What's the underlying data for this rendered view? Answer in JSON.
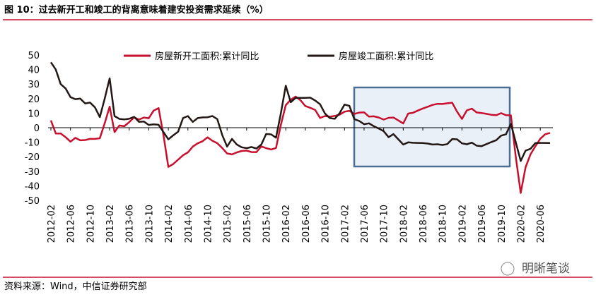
{
  "chart_data": {
    "type": "line",
    "title": "图 10：过去新开工和竣工的背离意味着建安投资需求延续（%）",
    "source": "资料来源：Wind，中信证券研究部",
    "watermark": "明晰笔谈",
    "categories": [
      "2012-02",
      null,
      null,
      null,
      "2012-06",
      null,
      null,
      null,
      "2012-10",
      null,
      null,
      null,
      "2013-02",
      null,
      null,
      null,
      "2013-06",
      null,
      null,
      null,
      "2013-10",
      null,
      null,
      null,
      "2014-02",
      null,
      null,
      null,
      "2014-06",
      null,
      null,
      null,
      "2014-10",
      null,
      null,
      null,
      "2015-02",
      null,
      null,
      null,
      "2015-06",
      null,
      null,
      null,
      "2015-10",
      null,
      null,
      null,
      "2016-02",
      null,
      null,
      null,
      "2016-06",
      null,
      null,
      null,
      "2016-10",
      null,
      null,
      null,
      "2017-02",
      null,
      null,
      null,
      "2017-06",
      null,
      null,
      null,
      "2017-10",
      null,
      null,
      null,
      "2018-02",
      null,
      null,
      null,
      "2018-06",
      null,
      null,
      null,
      "2018-10",
      null,
      null,
      null,
      "2019-02",
      null,
      null,
      null,
      "2019-06",
      null,
      null,
      null,
      "2019-10",
      null,
      null,
      null,
      "2020-02",
      null,
      null,
      null,
      "2020-06",
      null,
      null
    ],
    "series": [
      {
        "name": "房屋新开工面积:累计同比",
        "color": "#c8102e",
        "values": [
          5,
          -4,
          -4,
          -6.5,
          -9.6,
          -7,
          -8.7,
          -8.5,
          -7.7,
          -7.7,
          -7.3,
          3,
          14.5,
          -3,
          1.5,
          1,
          3.8,
          7.1,
          5.6,
          7,
          6.5,
          11.8,
          13.5,
          -5,
          -27,
          -25,
          -22,
          -19,
          -17,
          -13,
          -10.8,
          -9.3,
          -6.6,
          -9,
          -10.7,
          -14,
          -17.7,
          -18.4,
          -17,
          -16,
          -15.8,
          -16.8,
          -16.8,
          -12.9,
          -14.1,
          -15,
          -14,
          2,
          15.5,
          19.2,
          21.4,
          18.9,
          14.9,
          13.7,
          12.2,
          6.7,
          8,
          7.6,
          8.1,
          9,
          11,
          11.6,
          9.4,
          10.4,
          10.6,
          7.6,
          7.8,
          7,
          5.6,
          6.8,
          7,
          5,
          2.9,
          9.7,
          10.3,
          11.8,
          13.2,
          14.4,
          15.7,
          16.4,
          16.3,
          16.8,
          17.2,
          11,
          6,
          11.9,
          13.1,
          10.5,
          10.1,
          9.5,
          8.9,
          8.6,
          10,
          8.6,
          8.5,
          -20,
          -44.9,
          -27.2,
          -18.4,
          -12.8,
          -7.6,
          -4.5,
          -3.6
        ]
      },
      {
        "name": "房屋竣工面积:累计同比",
        "color": "#231815",
        "values": [
          45,
          40,
          30,
          27,
          21,
          19.6,
          20,
          16.7,
          17.3,
          14,
          7.3,
          20,
          34,
          8,
          6,
          5.7,
          6.1,
          7.5,
          4,
          4.2,
          1.9,
          2.3,
          2,
          -3,
          -8,
          -5.3,
          -2.7,
          6.6,
          8,
          4,
          6.6,
          7.1,
          7.2,
          8,
          5.9,
          -5,
          -13,
          -7.7,
          -11.6,
          -13.5,
          -14.1,
          -13.3,
          -14.3,
          -11.6,
          -4.3,
          -4.6,
          -6.9,
          10,
          28.9,
          17.5,
          20.5,
          20.5,
          20.5,
          20.7,
          18.7,
          16.1,
          9.8,
          6.6,
          6.1,
          10,
          15.9,
          15,
          5.9,
          4.6,
          2.4,
          3,
          1,
          -0.6,
          -2.4,
          -6.5,
          -4.4,
          -8,
          -11.6,
          -10.1,
          -10.4,
          -10.5,
          -10.6,
          -10.9,
          -11.6,
          -11.4,
          -11.9,
          -11.3,
          -7.8,
          -8,
          -10.8,
          -11.4,
          -10.3,
          -12.4,
          -12.7,
          -11.3,
          -9.9,
          -8.6,
          -5.5,
          -4.5,
          2.6,
          -10,
          -22.9,
          -15.8,
          -14.5,
          -10.6,
          -10.5,
          -10.5,
          -10.6
        ]
      }
    ],
    "ylim": [
      -50,
      50
    ],
    "yticks": [
      -50,
      -40,
      -30,
      -20,
      -10,
      0,
      10,
      20,
      30,
      40,
      50
    ]
  }
}
